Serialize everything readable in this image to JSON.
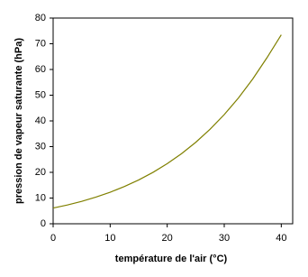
{
  "chart_data": {
    "type": "line",
    "xlabel": "température de l'air (°C)",
    "ylabel": "pression de vapeur saturante (hPa)",
    "x": [
      0,
      2.5,
      5,
      7.5,
      10,
      12.5,
      15,
      17.5,
      20,
      22.5,
      25,
      27.5,
      30,
      32.5,
      35,
      37.5,
      40
    ],
    "series": [
      {
        "color": "#808000",
        "values": [
          6.11,
          7.31,
          8.72,
          10.36,
          12.27,
          14.48,
          17.04,
          19.98,
          23.37,
          27.25,
          31.67,
          36.72,
          42.45,
          48.96,
          56.31,
          64.6,
          73.5
        ]
      }
    ],
    "xlim": [
      0,
      42
    ],
    "xticks": [
      0,
      10,
      20,
      30,
      40
    ],
    "ylim": [
      0,
      80
    ],
    "yticks": [
      0,
      10,
      20,
      30,
      40,
      50,
      60,
      70,
      80
    ]
  }
}
